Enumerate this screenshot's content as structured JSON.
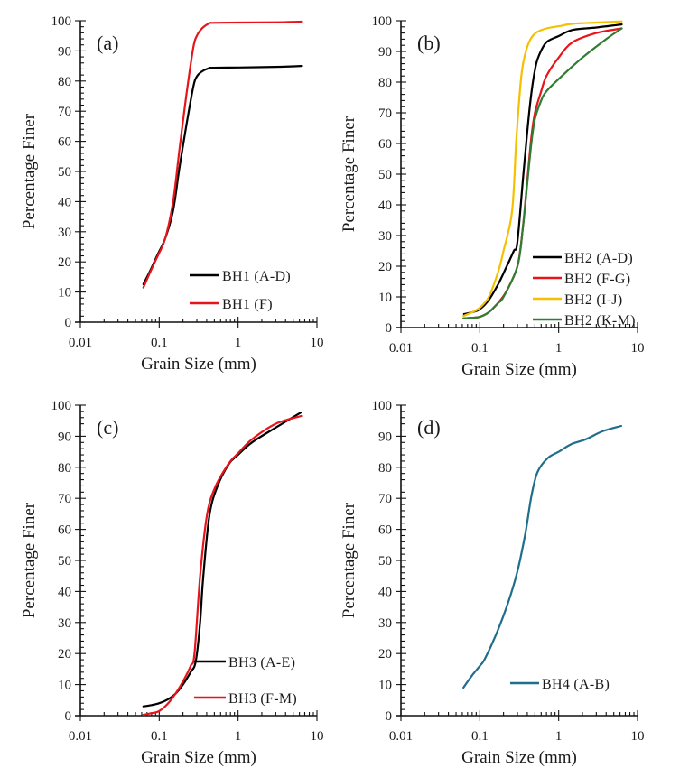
{
  "chart_data": [
    {
      "type": "line",
      "panel_label": "(a)",
      "xlabel": "Grain Size (mm)",
      "ylabel": "Percentage Finer",
      "xscale": "log",
      "xlim": [
        0.01,
        10
      ],
      "ylim": [
        0,
        100
      ],
      "xticks": [
        "0.01",
        "0.1",
        "1",
        "10"
      ],
      "yticks": [
        "0",
        "10",
        "20",
        "30",
        "40",
        "50",
        "60",
        "70",
        "80",
        "90",
        "100"
      ],
      "grid": false,
      "legend_position": "bottom-right",
      "series": [
        {
          "name": "BH1 (A-D)",
          "color": "#000000",
          "x": [
            0.063,
            0.075,
            0.09,
            0.1,
            0.12,
            0.15,
            0.18,
            0.22,
            0.27,
            0.3,
            0.35,
            0.42,
            0.47,
            1.0,
            3.0,
            6.3
          ],
          "y": [
            12.6,
            16.5,
            21,
            23.5,
            28,
            37,
            51,
            65,
            78,
            81.5,
            83.2,
            84.2,
            84.4,
            84.5,
            84.7,
            85
          ]
        },
        {
          "name": "BH1 (F)",
          "color": "#e8141b",
          "x": [
            0.063,
            0.075,
            0.09,
            0.1,
            0.12,
            0.15,
            0.18,
            0.22,
            0.27,
            0.3,
            0.35,
            0.42,
            0.47,
            1.0,
            3.0,
            6.3
          ],
          "y": [
            11.5,
            16,
            20.5,
            23,
            28,
            40,
            57,
            75,
            91,
            95,
            97.5,
            99,
            99.3,
            99.4,
            99.5,
            99.7
          ]
        }
      ]
    },
    {
      "type": "line",
      "panel_label": "(b)",
      "xlabel": "Grain Size (mm)",
      "ylabel": "Percentage Finer",
      "xscale": "log",
      "xlim": [
        0.01,
        10
      ],
      "ylim": [
        0,
        100
      ],
      "xticks": [
        "0.01",
        "0.1",
        "1",
        "10"
      ],
      "yticks": [
        "0",
        "10",
        "20",
        "30",
        "40",
        "50",
        "60",
        "70",
        "80",
        "90",
        "100"
      ],
      "grid": false,
      "legend_position": "bottom-right",
      "series": [
        {
          "name": "BH2 (A-D)",
          "color": "#000000",
          "x": [
            0.063,
            0.08,
            0.1,
            0.13,
            0.17,
            0.22,
            0.27,
            0.3,
            0.36,
            0.43,
            0.5,
            0.57,
            0.7,
            1.0,
            1.5,
            3.0,
            6.3
          ],
          "y": [
            4.4,
            5,
            6,
            9,
            14,
            20,
            25,
            28,
            51,
            72,
            84,
            89,
            93,
            95,
            97,
            97.8,
            98.8
          ]
        },
        {
          "name": "BH2 (F-G)",
          "color": "#e8141b",
          "x": [
            0.063,
            0.08,
            0.1,
            0.13,
            0.17,
            0.22,
            0.3,
            0.35,
            0.4,
            0.45,
            0.5,
            0.6,
            0.7,
            1.0,
            1.5,
            3.0,
            6.3
          ],
          "y": [
            3,
            3.2,
            3.5,
            5,
            8,
            12,
            20,
            32,
            48,
            62,
            70,
            77,
            82,
            88,
            93,
            96,
            97.5
          ]
        },
        {
          "name": "BH2 (I-J)",
          "color": "#f5c000",
          "x": [
            0.062,
            0.08,
            0.1,
            0.13,
            0.17,
            0.2,
            0.257,
            0.29,
            0.33,
            0.36,
            0.42,
            0.51,
            0.7,
            1.0,
            1.5,
            3.0,
            6.3
          ],
          "y": [
            3.8,
            5,
            6.5,
            10,
            18,
            25,
            38,
            61,
            80,
            87,
            93,
            96,
            97.5,
            98.2,
            99,
            99.4,
            99.8
          ]
        },
        {
          "name": "BH2 (K-M)",
          "color": "#2f7d32",
          "x": [
            0.062,
            0.08,
            0.1,
            0.13,
            0.17,
            0.2,
            0.3,
            0.35,
            0.4,
            0.45,
            0.5,
            0.6,
            0.7,
            1.0,
            2.0,
            4.0,
            6.3
          ],
          "y": [
            3,
            3.2,
            3.5,
            5,
            8,
            10,
            20,
            32,
            47,
            60,
            68,
            74,
            77,
            81,
            88,
            94,
            97.5
          ]
        }
      ]
    },
    {
      "type": "line",
      "panel_label": "(c)",
      "xlabel": "Grain Size (mm)",
      "ylabel": "Percentage Finer",
      "xscale": "log",
      "xlim": [
        0.01,
        10
      ],
      "ylim": [
        0,
        100
      ],
      "xticks": [
        "0.01",
        "0.1",
        "1",
        "10"
      ],
      "yticks": [
        "0",
        "10",
        "20",
        "30",
        "40",
        "50",
        "60",
        "70",
        "80",
        "90",
        "100"
      ],
      "grid": false,
      "legend_position": "bottom-right",
      "series": [
        {
          "name": "BH3 (A-E)",
          "color": "#000000",
          "x": [
            0.063,
            0.08,
            0.1,
            0.13,
            0.16,
            0.2,
            0.25,
            0.29,
            0.33,
            0.36,
            0.43,
            0.54,
            0.76,
            1.0,
            1.5,
            3.1,
            6.2
          ],
          "y": [
            3,
            3.4,
            4,
            5.3,
            7,
            10,
            14,
            17.4,
            30,
            44,
            64,
            73.5,
            81,
            84,
            88,
            93,
            97.6
          ]
        },
        {
          "name": "BH3 (F-M)",
          "color": "#e8141b",
          "x": [
            0.063,
            0.08,
            0.1,
            0.13,
            0.16,
            0.2,
            0.25,
            0.28,
            0.33,
            0.4,
            0.5,
            0.75,
            1.0,
            1.5,
            3.0,
            6.3
          ],
          "y": [
            0.3,
            0.8,
            1.5,
            4,
            7,
            11,
            16,
            20,
            45,
            64,
            73,
            81,
            84.5,
            89,
            94,
            96.5
          ]
        }
      ]
    },
    {
      "type": "line",
      "panel_label": "(d)",
      "xlabel": "Grain Size (mm)",
      "ylabel": "Percentage Finer",
      "xscale": "log",
      "xlim": [
        0.01,
        10
      ],
      "ylim": [
        0,
        100
      ],
      "xticks": [
        "0.01",
        "0.1",
        "1",
        "10"
      ],
      "yticks": [
        "0",
        "10",
        "20",
        "30",
        "40",
        "50",
        "60",
        "70",
        "80",
        "90",
        "100"
      ],
      "grid": false,
      "legend_position": "bottom-right",
      "series": [
        {
          "name": "BH4 (A-B)",
          "color": "#1f6e8c",
          "x": [
            0.062,
            0.08,
            0.1,
            0.116,
            0.16,
            0.23,
            0.3,
            0.38,
            0.45,
            0.54,
            0.73,
            1.0,
            1.46,
            2.2,
            3.6,
            6.2
          ],
          "y": [
            9,
            13,
            16,
            18.3,
            26,
            36.6,
            46.5,
            59,
            70.6,
            78.5,
            83,
            85,
            87.5,
            89,
            91.6,
            93.3
          ]
        }
      ]
    }
  ]
}
